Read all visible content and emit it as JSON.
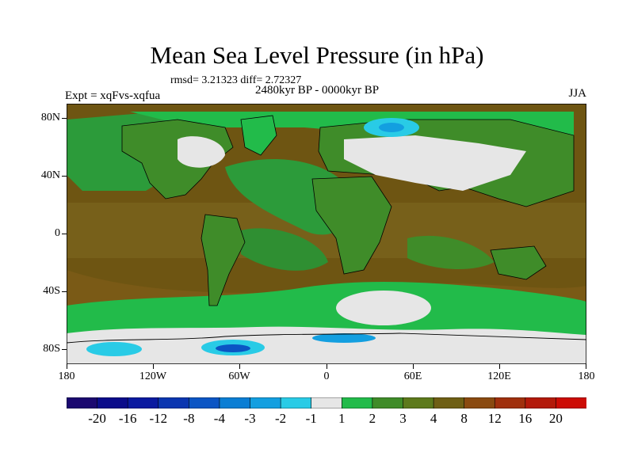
{
  "title": "Mean Sea Level Pressure (in hPa)",
  "stats_line": "rmsd= 3.21323 diff= 2.72327",
  "period": "2480kyr BP - 0000kyr BP",
  "experiment": "Expt = xqFvs-xqfua",
  "season": "JJA",
  "lat_labels": [
    "80N",
    "40N",
    "0",
    "40S",
    "80S"
  ],
  "lon_labels": [
    "180",
    "120W",
    "60W",
    "0",
    "60E",
    "120E",
    "180"
  ],
  "colorbar": {
    "labels": [
      "-20",
      "-16",
      "-12",
      "-8",
      "-4",
      "-3",
      "-2",
      "-1",
      "1",
      "2",
      "3",
      "4",
      "8",
      "12",
      "16",
      "20"
    ],
    "colors": [
      "#1b0870",
      "#0b0c8a",
      "#0a1aa0",
      "#0a36b0",
      "#0b55c4",
      "#0a7ed4",
      "#139fe0",
      "#29cbe6",
      "#e6e6e6",
      "#22bb4a",
      "#3f8c29",
      "#5d7a1c",
      "#6f5f14",
      "#8a4a10",
      "#a0300d",
      "#b31a0a",
      "#cc0c05"
    ]
  },
  "colors": {
    "ocean_base": "#6e5512",
    "land_base": "#3f8c29",
    "coast": "#000000"
  }
}
